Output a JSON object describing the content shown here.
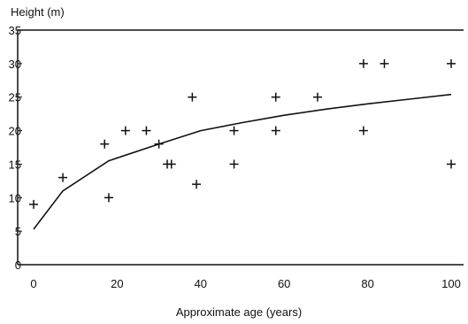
{
  "chart_data": {
    "type": "scatter",
    "title": "",
    "xlabel": "Approximate age (years)",
    "ylabel": "Height (m)",
    "xlim": [
      0,
      100
    ],
    "ylim": [
      0,
      35
    ],
    "x_ticks": [
      "0",
      "20",
      "40",
      "60",
      "80",
      "100"
    ],
    "y_ticks": [
      "0",
      "5",
      "10",
      "15",
      "20",
      "25",
      "30",
      "35"
    ],
    "grid": false,
    "legend": "none",
    "points": [
      {
        "x": 0,
        "y": 9
      },
      {
        "x": 7,
        "y": 13
      },
      {
        "x": 17,
        "y": 18
      },
      {
        "x": 18,
        "y": 10
      },
      {
        "x": 22,
        "y": 20
      },
      {
        "x": 27,
        "y": 20
      },
      {
        "x": 30,
        "y": 18
      },
      {
        "x": 32,
        "y": 15
      },
      {
        "x": 33,
        "y": 15
      },
      {
        "x": 38,
        "y": 25
      },
      {
        "x": 39,
        "y": 12
      },
      {
        "x": 48,
        "y": 20
      },
      {
        "x": 48,
        "y": 15
      },
      {
        "x": 58,
        "y": 25
      },
      {
        "x": 58,
        "y": 20
      },
      {
        "x": 68,
        "y": 25
      },
      {
        "x": 79,
        "y": 30
      },
      {
        "x": 79,
        "y": 20
      },
      {
        "x": 84,
        "y": 30
      },
      {
        "x": 100,
        "y": 30
      },
      {
        "x": 100,
        "y": 15
      }
    ],
    "trend_line": [
      {
        "x": 0,
        "y": 5.3
      },
      {
        "x": 7,
        "y": 11
      },
      {
        "x": 18,
        "y": 15.5
      },
      {
        "x": 30,
        "y": 18
      },
      {
        "x": 40,
        "y": 20
      },
      {
        "x": 50,
        "y": 21.2
      },
      {
        "x": 60,
        "y": 22.3
      },
      {
        "x": 70,
        "y": 23.2
      },
      {
        "x": 80,
        "y": 24
      },
      {
        "x": 90,
        "y": 24.7
      },
      {
        "x": 100,
        "y": 25.4
      }
    ],
    "colors": {
      "ink": "#111111",
      "background": "#ffffff"
    }
  }
}
